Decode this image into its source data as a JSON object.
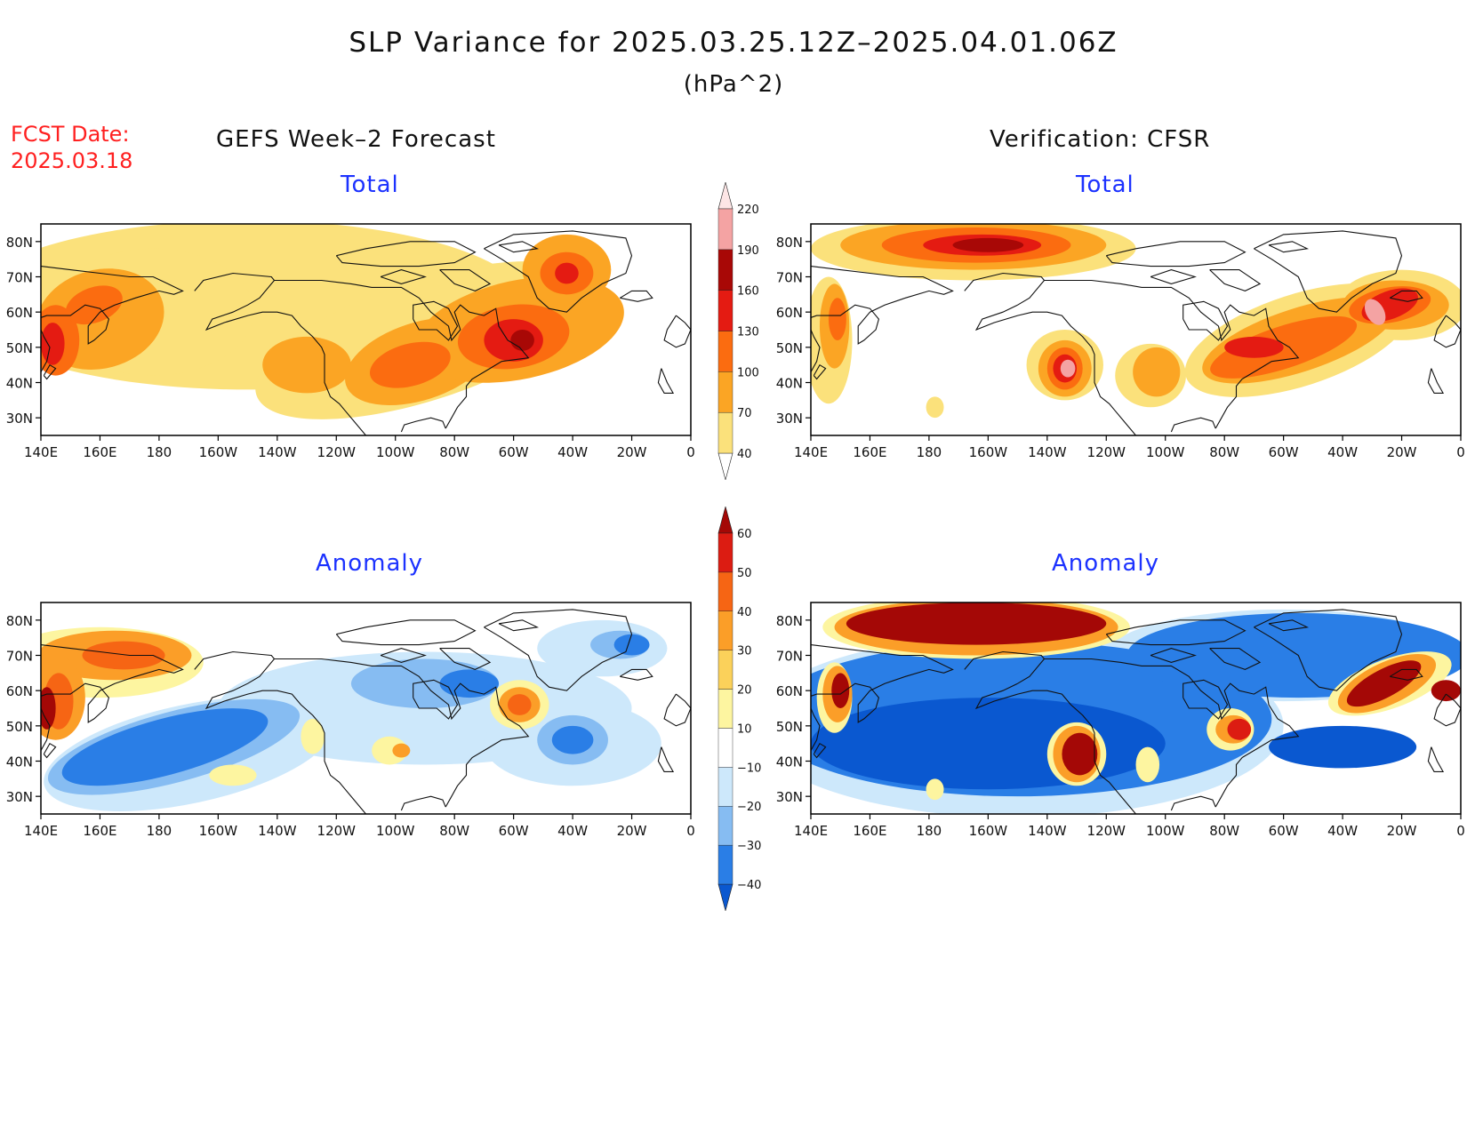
{
  "title": "SLP Variance for 2025.03.25.12Z–2025.04.01.06Z",
  "units": "(hPa^2)",
  "forecast_date": {
    "label": "FCST Date:",
    "value": "2025.03.18"
  },
  "columns": {
    "left": "GEFS Week–2 Forecast",
    "right": "Verification: CFSR"
  },
  "panel_labels": {
    "total": "Total",
    "anomaly": "Anomaly"
  },
  "axes": {
    "lat_ticks": [
      "80N",
      "70N",
      "60N",
      "50N",
      "40N",
      "30N"
    ],
    "lon_ticks": [
      "140E",
      "160E",
      "180",
      "160W",
      "140W",
      "120W",
      "100W",
      "80W",
      "60W",
      "40W",
      "20W",
      "0"
    ]
  },
  "colorbars": {
    "total": {
      "levels": [
        "40",
        "70",
        "100",
        "130",
        "160",
        "190",
        "220"
      ],
      "colors": [
        "#ffffff",
        "#fbe17b",
        "#fba524",
        "#fb6c10",
        "#e41b12",
        "#a80806",
        "#f4a3a3",
        "#fde6e6"
      ]
    },
    "anomaly": {
      "levels": [
        "−40",
        "−30",
        "−20",
        "−10",
        "10",
        "20",
        "30",
        "40",
        "50",
        "60"
      ],
      "colors": [
        "#0a58d0",
        "#2a7ee6",
        "#86bcf2",
        "#cde8fb",
        "#ffffff",
        "#fdf5a0",
        "#fbd15a",
        "#fb9e28",
        "#f66514",
        "#dc1c12",
        "#a40806"
      ]
    }
  },
  "color_levels": {
    "total": {
      "y": "#fbe17b",
      "o": "#fba524",
      "r": "#fb6c10",
      "d": "#e41b12",
      "m": "#a80806",
      "p": "#f4a3a3"
    },
    "anomaly": {
      "lb": "#cde8fb",
      "mb": "#86bcf2",
      "b": "#2a7ee6",
      "db": "#0a58d0",
      "y": "#fdf5a0",
      "o": "#fb9e28",
      "r": "#f66514",
      "d": "#dc1c12",
      "m": "#a40806"
    }
  }
}
